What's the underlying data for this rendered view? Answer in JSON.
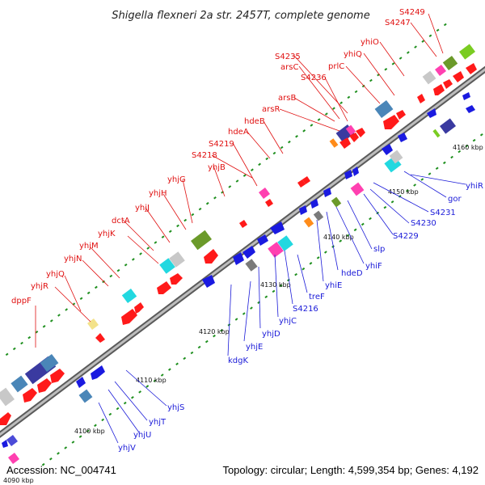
{
  "title": "Shigella flexneri 2a str. 2457T, complete genome",
  "footer": {
    "accession": "Accession: NC_004741",
    "summary": "Topology: circular; Length: 4,599,354 bp; Genes: 4,192"
  },
  "kbp_labels": [
    "4090 kbp",
    "4100 kbp",
    "4110 kbp",
    "4120 kbp",
    "4130 kbp",
    "4140 kbp",
    "4150 kbp",
    "4160 kbp"
  ],
  "forward_labels": [
    "dppF",
    "yhjR",
    "yhjQ",
    "yhjN",
    "yhjM",
    "dctA",
    "yhjK",
    "yhjJ",
    "yhjH",
    "yhjG",
    "yhjB",
    "S4218",
    "S4219",
    "hdeA",
    "hdeB",
    "arsR",
    "arsB",
    "S4236",
    "arsC",
    "S4235",
    "prlC",
    "yhiQ",
    "yhiO",
    "S4247",
    "S4249"
  ],
  "reverse_labels": [
    "yhjV",
    "yhjU",
    "yhjT",
    "yhjS",
    "kdgK",
    "yhjE",
    "yhjD",
    "yhjC",
    "S4216",
    "treF",
    "yhiE",
    "hdeD",
    "yhiF",
    "slp",
    "S4229",
    "S4230",
    "S4231",
    "gor",
    "yhiR"
  ],
  "colors": {
    "forward_label": "#e01010",
    "reverse_label": "#1a1ad8",
    "backbone": "#8a8a8a",
    "forward_gene": "#ff1a1a",
    "reverse_gene": "#1a1ae0"
  }
}
